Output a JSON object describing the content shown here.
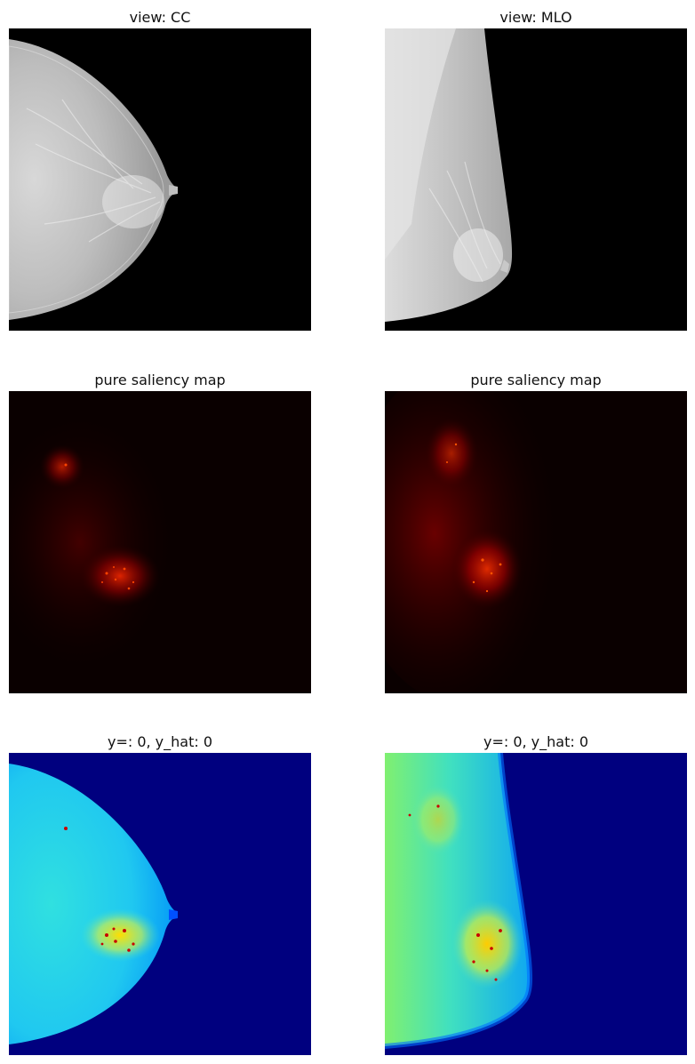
{
  "figure": {
    "row1": {
      "left_title": "view: CC",
      "right_title": "view: MLO"
    },
    "row2": {
      "left_title": "pure saliency map",
      "right_title": "pure saliency map"
    },
    "row3": {
      "left_title": "y=: 0, y_hat: 0",
      "right_title": "y=: 0, y_hat: 0"
    }
  },
  "colors": {
    "mammo_background": "#000000",
    "saliency_background": "#0a0000",
    "overlay_background": "#00007f",
    "saliency_hot": "#ff3000",
    "overlay_tissue": "#2ec8f0",
    "overlay_hot": "#c80000"
  }
}
